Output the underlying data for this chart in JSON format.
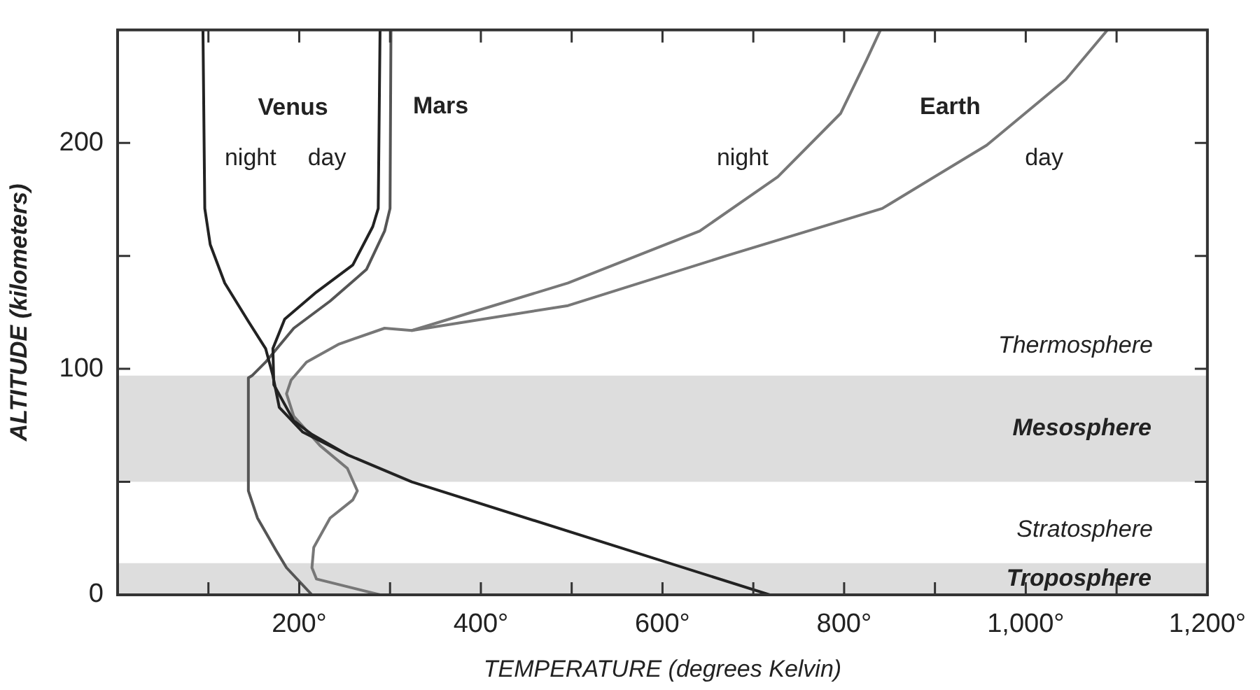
{
  "chart_data": {
    "type": "line",
    "xlabel": "TEMPERATURE (degrees Kelvin)",
    "ylabel": "ALTITUDE (kilometers)",
    "xlim": [
      0,
      1200
    ],
    "xticks": [
      {
        "value": 0,
        "label": null
      },
      {
        "value": 100,
        "label": null
      },
      {
        "value": 200,
        "label": "200°"
      },
      {
        "value": 300,
        "label": null
      },
      {
        "value": 400,
        "label": "400°"
      },
      {
        "value": 500,
        "label": null
      },
      {
        "value": 600,
        "label": "600°"
      },
      {
        "value": 700,
        "label": null
      },
      {
        "value": 800,
        "label": "800°"
      },
      {
        "value": 900,
        "label": null
      },
      {
        "value": 1000,
        "label": "1,000°"
      },
      {
        "value": 1100,
        "label": null
      },
      {
        "value": 1200,
        "label": "1,200°"
      }
    ],
    "ylim": [
      0,
      250
    ],
    "yticks": [
      0,
      {
        "value": 50,
        "label": null
      },
      100,
      {
        "value": 150,
        "label": null
      },
      200
    ],
    "grid": false,
    "legend": false,
    "marker": "none",
    "line_style": "solid",
    "series": [
      {
        "name": "night",
        "color": "#222222",
        "x": [
          94,
          96,
          102,
          118,
          144,
          163,
          171,
          178,
          204,
          253,
          324,
          718
        ],
        "values": [
          250,
          171,
          155,
          138,
          121,
          109,
          97,
          83,
          72,
          62,
          50,
          0
        ]
      },
      {
        "name": "day",
        "color": "#222222",
        "x": [
          289,
          287,
          281,
          259,
          219,
          184,
          171,
          172,
          194,
          214,
          253
        ],
        "values": [
          250,
          171,
          163,
          146,
          134,
          122,
          109,
          93,
          77,
          71,
          62
        ]
      },
      {
        "name": "Mars",
        "color": "#555555",
        "x": [
          301,
          300,
          294,
          274,
          234,
          194,
          163,
          148,
          144,
          144,
          154,
          174,
          186,
          214
        ],
        "values": [
          250,
          171,
          161,
          144,
          130,
          118,
          103,
          97,
          96,
          46,
          34,
          20,
          12,
          0
        ]
      },
      {
        "name": "night",
        "color": "#777777",
        "x": [
          289,
          219,
          214,
          216,
          234,
          259,
          264,
          253,
          223,
          194,
          186,
          191,
          208,
          244,
          294,
          324,
          496,
          641,
          727,
          796,
          825,
          840
        ],
        "values": [
          0,
          7,
          12,
          21,
          34,
          42,
          46,
          56,
          66,
          79,
          89,
          95,
          103,
          111,
          118,
          117,
          138,
          161,
          185,
          213,
          237,
          250
        ]
      },
      {
        "name": "day",
        "color": "#777777",
        "x": [
          324,
          496,
          670,
          842,
          957,
          1044,
          1090
        ],
        "values": [
          117,
          128,
          150,
          171,
          199,
          228,
          250
        ]
      }
    ],
    "bands": [
      {
        "axis": "y",
        "from": 0,
        "to": 14,
        "label": "Troposphere",
        "color": "#dddddd"
      },
      {
        "axis": "y",
        "from": 50,
        "to": 97,
        "label": "Mesosphere",
        "color": "#dddddd"
      }
    ],
    "annotations": [
      "Venus",
      "Earth",
      "Thermosphere",
      "Stratosphere"
    ]
  }
}
